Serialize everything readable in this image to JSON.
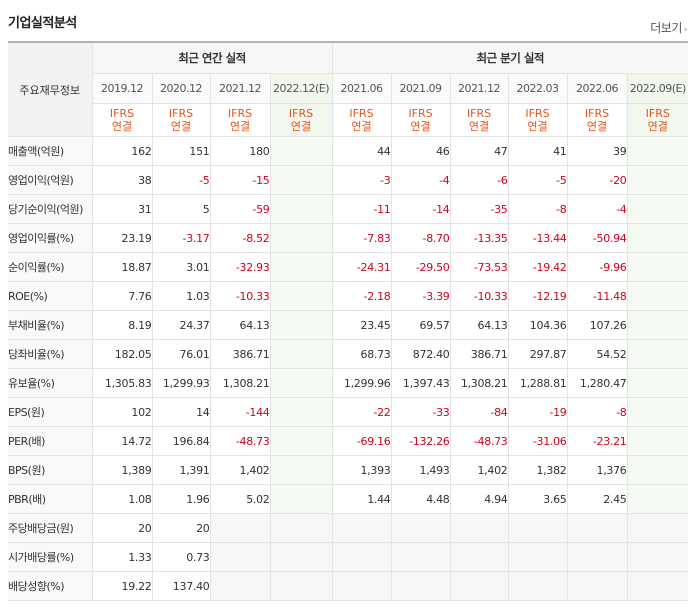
{
  "section": {
    "title": "기업실적분석",
    "more_label": "더보기",
    "more_icon": "chevron-right-icon"
  },
  "corner_label": "주요재무정보",
  "groups": {
    "annual": "최근 연간 실적",
    "quarter": "최근 분기 실적"
  },
  "columns": [
    {
      "date": "2019.12",
      "std": "IFRS",
      "cons": "연결"
    },
    {
      "date": "2020.12",
      "std": "IFRS",
      "cons": "연결"
    },
    {
      "date": "2021.12",
      "std": "IFRS",
      "cons": "연결"
    },
    {
      "date": "2022.12(E)",
      "std": "IFRS",
      "cons": "연결",
      "estimate": true
    },
    {
      "date": "2021.06",
      "std": "IFRS",
      "cons": "연결"
    },
    {
      "date": "2021.09",
      "std": "IFRS",
      "cons": "연결"
    },
    {
      "date": "2021.12",
      "std": "IFRS",
      "cons": "연결"
    },
    {
      "date": "2022.03",
      "std": "IFRS",
      "cons": "연결"
    },
    {
      "date": "2022.06",
      "std": "IFRS",
      "cons": "연결"
    },
    {
      "date": "2022.09(E)",
      "std": "IFRS",
      "cons": "연결",
      "estimate": true
    }
  ],
  "rows": [
    {
      "label": "매출액(억원)",
      "values": [
        "162",
        "151",
        "180",
        "",
        "44",
        "46",
        "47",
        "41",
        "39",
        ""
      ]
    },
    {
      "label": "영업이익(억원)",
      "values": [
        "38",
        "-5",
        "-15",
        "",
        "-3",
        "-4",
        "-6",
        "-5",
        "-20",
        ""
      ]
    },
    {
      "label": "당기순이익(억원)",
      "values": [
        "31",
        "5",
        "-59",
        "",
        "-11",
        "-14",
        "-35",
        "-8",
        "-4",
        ""
      ]
    },
    {
      "label": "영업이익률(%)",
      "values": [
        "23.19",
        "-3.17",
        "-8.52",
        "",
        "-7.83",
        "-8.70",
        "-13.35",
        "-13.44",
        "-50.94",
        ""
      ]
    },
    {
      "label": "순이익률(%)",
      "values": [
        "18.87",
        "3.01",
        "-32.93",
        "",
        "-24.31",
        "-29.50",
        "-73.53",
        "-19.42",
        "-9.96",
        ""
      ]
    },
    {
      "label": "ROE(%)",
      "values": [
        "7.76",
        "1.03",
        "-10.33",
        "",
        "-2.18",
        "-3.39",
        "-10.33",
        "-12.19",
        "-11.48",
        ""
      ]
    },
    {
      "label": "부채비율(%)",
      "values": [
        "8.19",
        "24.37",
        "64.13",
        "",
        "23.45",
        "69.57",
        "64.13",
        "104.36",
        "107.26",
        ""
      ]
    },
    {
      "label": "당좌비율(%)",
      "values": [
        "182.05",
        "76.01",
        "386.71",
        "",
        "68.73",
        "872.40",
        "386.71",
        "297.87",
        "54.52",
        ""
      ]
    },
    {
      "label": "유보율(%)",
      "values": [
        "1,305.83",
        "1,299.93",
        "1,308.21",
        "",
        "1,299.96",
        "1,397.43",
        "1,308.21",
        "1,288.81",
        "1,280.47",
        ""
      ]
    },
    {
      "label": "EPS(원)",
      "values": [
        "102",
        "14",
        "-144",
        "",
        "-22",
        "-33",
        "-84",
        "-19",
        "-8",
        ""
      ]
    },
    {
      "label": "PER(배)",
      "values": [
        "14.72",
        "196.84",
        "-48.73",
        "",
        "-69.16",
        "-132.26",
        "-48.73",
        "-31.06",
        "-23.21",
        ""
      ]
    },
    {
      "label": "BPS(원)",
      "values": [
        "1,389",
        "1,391",
        "1,402",
        "",
        "1,393",
        "1,493",
        "1,402",
        "1,382",
        "1,376",
        ""
      ]
    },
    {
      "label": "PBR(배)",
      "values": [
        "1.08",
        "1.96",
        "5.02",
        "",
        "1.44",
        "4.48",
        "4.94",
        "3.65",
        "2.45",
        ""
      ]
    },
    {
      "label": "주당배당금(원)",
      "values": [
        "20",
        "20",
        null,
        null,
        null,
        null,
        null,
        null,
        null,
        null
      ]
    },
    {
      "label": "시가배당률(%)",
      "values": [
        "1.33",
        "0.73",
        null,
        null,
        null,
        null,
        null,
        null,
        null,
        null
      ]
    },
    {
      "label": "배당성향(%)",
      "values": [
        "19.22",
        "137.40",
        null,
        null,
        null,
        null,
        null,
        null,
        null,
        null
      ]
    }
  ],
  "colors": {
    "ifrs": "#e2541b",
    "negative": "#d0021b",
    "estimate_bg": "#f5faf2"
  }
}
